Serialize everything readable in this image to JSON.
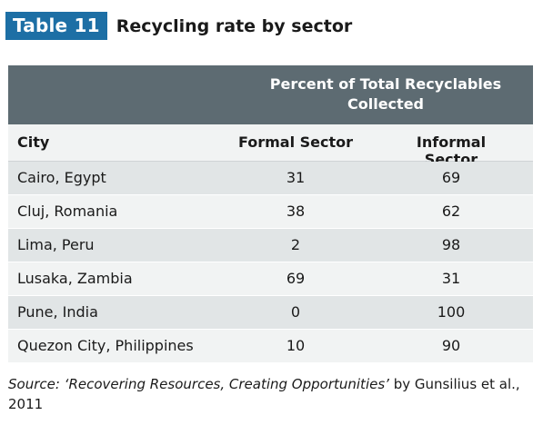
{
  "title": {
    "badge": "Table 11",
    "text": "Recycling rate by sector"
  },
  "table": {
    "group_header_line1": "Percent of Total Recyclables",
    "group_header_line2": "Collected",
    "columns": [
      "City",
      "Formal Sector",
      "Informal Sector"
    ],
    "rows": [
      {
        "city": "Cairo, Egypt",
        "formal": "31",
        "informal": "69"
      },
      {
        "city": "Cluj, Romania",
        "formal": "38",
        "informal": "62"
      },
      {
        "city": "Lima, Peru",
        "formal": "2",
        "informal": "98"
      },
      {
        "city": "Lusaka, Zambia",
        "formal": "69",
        "informal": "31"
      },
      {
        "city": "Pune, India",
        "formal": "0",
        "informal": "100"
      },
      {
        "city": "Quezon City, Philippines",
        "formal": "10",
        "informal": "90"
      }
    ]
  },
  "source": {
    "prefix": "Source: ",
    "italic": "‘Recovering Resources, Creating Opportunities’",
    "suffix": " by Gunsilius et al., 2011"
  },
  "colors": {
    "badge": "#1d6fa5",
    "header_band": "#5d6b72",
    "row_odd": "#e1e5e6",
    "row_even": "#f1f3f3"
  }
}
